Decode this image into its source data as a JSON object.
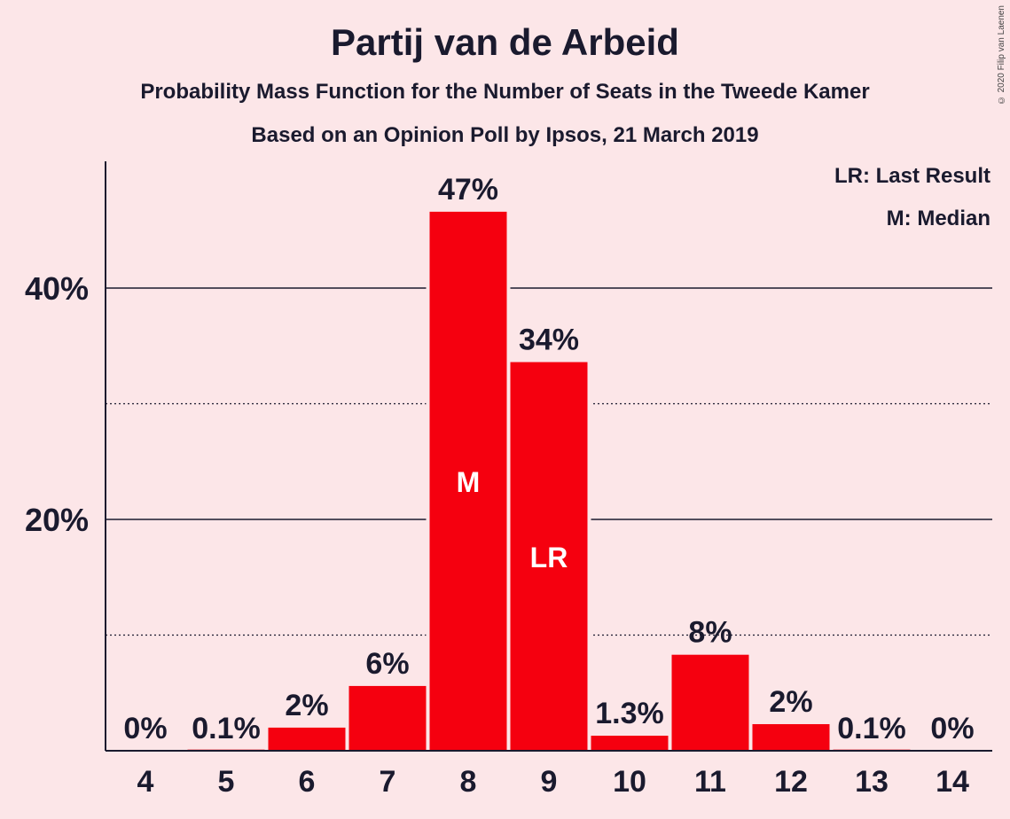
{
  "header": {
    "title": "Partij van de Arbeid",
    "subtitle": "Probability Mass Function for the Number of Seats in the Tweede Kamer",
    "subtitle2": "Based on an Opinion Poll by Ipsos, 21 March 2019",
    "copyright": "© 2020 Filip van Laenen"
  },
  "legend": {
    "lr": "LR: Last Result",
    "median": "M: Median"
  },
  "colors": {
    "background": "#fce6e8",
    "bar": "#f5000f",
    "text": "#1a1a2e"
  },
  "chart_data": {
    "type": "bar",
    "title": "Partij van de Arbeid",
    "categories": [
      "4",
      "5",
      "6",
      "7",
      "8",
      "9",
      "10",
      "11",
      "12",
      "13",
      "14"
    ],
    "values": [
      0,
      0.1,
      2,
      5.6,
      46.6,
      33.6,
      1.3,
      8.3,
      2.3,
      0.1,
      0
    ],
    "value_labels": [
      "0%",
      "0.1%",
      "2%",
      "6%",
      "47%",
      "34%",
      "1.3%",
      "8%",
      "2%",
      "0.1%",
      "0%"
    ],
    "bar_markers": {
      "8": "M",
      "9": "LR"
    },
    "ylim": [
      0,
      50
    ],
    "y_ticks": [
      20,
      40
    ],
    "y_tick_labels": [
      "20%",
      "40%"
    ],
    "y_minor_gridlines": [
      10,
      30
    ],
    "legend_position": "top-right"
  }
}
